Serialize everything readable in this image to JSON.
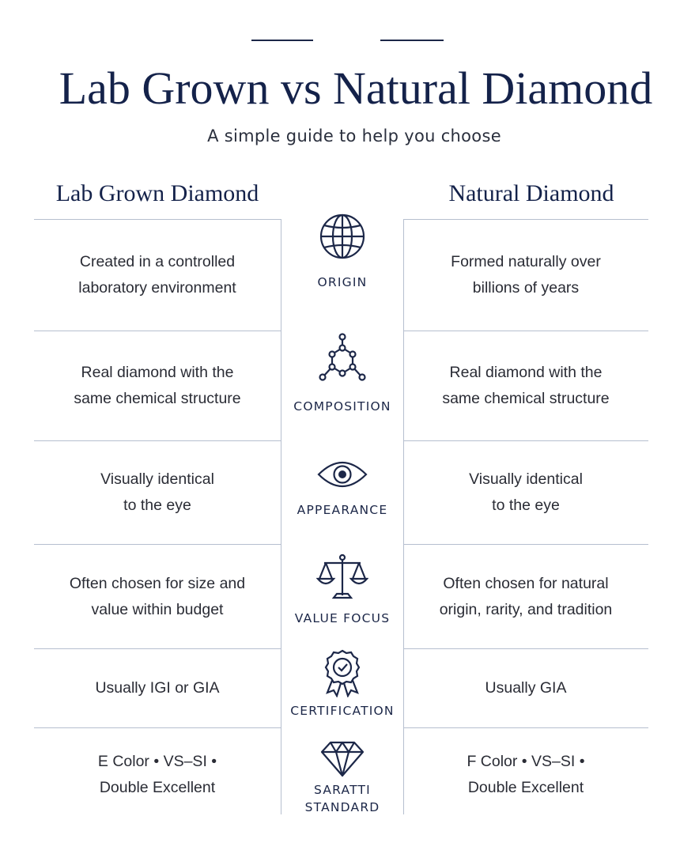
{
  "header": {
    "title": "Lab Grown vs Natural Diamond",
    "subtitle": "A simple guide to help you choose"
  },
  "columns": {
    "left": "Lab Grown Diamond",
    "right": "Natural Diamond"
  },
  "rows": [
    {
      "icon": "globe-icon",
      "label": "ORIGIN",
      "left": "Created in a controlled\nlaboratory environment",
      "right": "Formed naturally over\nbillions of years"
    },
    {
      "icon": "molecule-icon",
      "label": "COMPOSITION",
      "left": "Real diamond with the\nsame chemical structure",
      "right": "Real diamond with the\nsame chemical structure"
    },
    {
      "icon": "eye-icon",
      "label": "APPEARANCE",
      "left": "Visually identical\nto the eye",
      "right": "Visually identical\nto the eye"
    },
    {
      "icon": "scale-icon",
      "label": "VALUE FOCUS",
      "left": "Often chosen for size and\nvalue within budget",
      "right": "Often chosen for natural\norigin, rarity, and tradition"
    },
    {
      "icon": "certificate-badge-icon",
      "label": "CERTIFICATION",
      "left": "Usually IGI or GIA",
      "right": "Usually GIA"
    },
    {
      "icon": "diamond-icon",
      "label": "SARATTI\nSTANDARD",
      "left": "E Color • VS–SI •\nDouble Excellent",
      "right": "F Color • VS–SI •\nDouble Excellent"
    }
  ]
}
